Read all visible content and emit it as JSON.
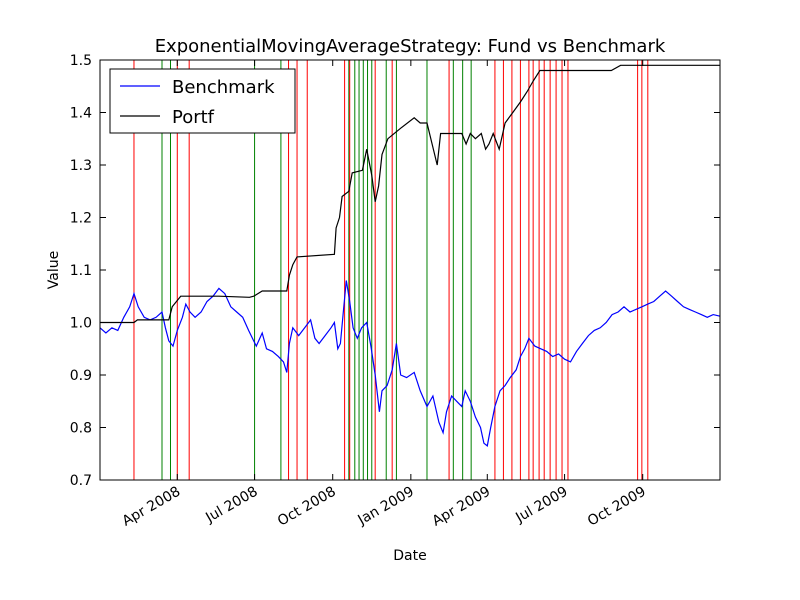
{
  "chart_data": {
    "type": "line",
    "title": "ExponentialMovingAverageStrategy: Fund vs Benchmark",
    "xlabel": "Date",
    "ylabel": "Value",
    "xlim": [
      "2008-01-01",
      "2009-12-31"
    ],
    "ylim": [
      0.7,
      1.5
    ],
    "y_ticks": [
      "0.7",
      "0.8",
      "0.9",
      "1.0",
      "1.1",
      "1.2",
      "1.3",
      "1.4",
      "1.5"
    ],
    "x_ticks": [
      {
        "date": "2008-04-01",
        "label": "Apr 2008"
      },
      {
        "date": "2008-07-01",
        "label": "Jul 2008"
      },
      {
        "date": "2008-10-01",
        "label": "Oct 2008"
      },
      {
        "date": "2009-01-01",
        "label": "Jan 2009"
      },
      {
        "date": "2009-04-01",
        "label": "Apr 2009"
      },
      {
        "date": "2009-07-01",
        "label": "Jul 2009"
      },
      {
        "date": "2009-10-01",
        "label": "Oct 2009"
      }
    ],
    "legend": {
      "position": "top-left"
    },
    "grid": false,
    "series": [
      {
        "name": "Benchmark",
        "color": "#0000ff",
        "points": [
          [
            "2008-01-01",
            0.99
          ],
          [
            "2008-01-08",
            0.98
          ],
          [
            "2008-01-15",
            0.99
          ],
          [
            "2008-01-22",
            0.985
          ],
          [
            "2008-01-29",
            1.01
          ],
          [
            "2008-02-05",
            1.03
          ],
          [
            "2008-02-10",
            1.055
          ],
          [
            "2008-02-15",
            1.03
          ],
          [
            "2008-02-22",
            1.01
          ],
          [
            "2008-02-29",
            1.005
          ],
          [
            "2008-03-07",
            1.01
          ],
          [
            "2008-03-14",
            1.02
          ],
          [
            "2008-03-18",
            0.99
          ],
          [
            "2008-03-22",
            0.965
          ],
          [
            "2008-03-27",
            0.955
          ],
          [
            "2008-04-01",
            0.985
          ],
          [
            "2008-04-07",
            1.01
          ],
          [
            "2008-04-11",
            1.035
          ],
          [
            "2008-04-16",
            1.02
          ],
          [
            "2008-04-22",
            1.01
          ],
          [
            "2008-04-29",
            1.02
          ],
          [
            "2008-05-06",
            1.04
          ],
          [
            "2008-05-13",
            1.05
          ],
          [
            "2008-05-20",
            1.065
          ],
          [
            "2008-05-27",
            1.055
          ],
          [
            "2008-06-03",
            1.03
          ],
          [
            "2008-06-10",
            1.02
          ],
          [
            "2008-06-17",
            1.01
          ],
          [
            "2008-06-24",
            0.985
          ],
          [
            "2008-06-30",
            0.965
          ],
          [
            "2008-07-03",
            0.955
          ],
          [
            "2008-07-10",
            0.98
          ],
          [
            "2008-07-15",
            0.95
          ],
          [
            "2008-07-22",
            0.945
          ],
          [
            "2008-07-29",
            0.935
          ],
          [
            "2008-08-04",
            0.925
          ],
          [
            "2008-08-08",
            0.905
          ],
          [
            "2008-08-11",
            0.96
          ],
          [
            "2008-08-15",
            0.99
          ],
          [
            "2008-08-22",
            0.975
          ],
          [
            "2008-08-29",
            0.99
          ],
          [
            "2008-09-05",
            1.005
          ],
          [
            "2008-09-10",
            0.97
          ],
          [
            "2008-09-15",
            0.96
          ],
          [
            "2008-09-22",
            0.975
          ],
          [
            "2008-09-29",
            0.99
          ],
          [
            "2008-10-03",
            1.0
          ],
          [
            "2008-10-07",
            0.95
          ],
          [
            "2008-10-10",
            0.96
          ],
          [
            "2008-10-14",
            1.03
          ],
          [
            "2008-10-17",
            1.08
          ],
          [
            "2008-10-21",
            1.04
          ],
          [
            "2008-10-25",
            0.99
          ],
          [
            "2008-10-30",
            0.97
          ],
          [
            "2008-11-04",
            0.99
          ],
          [
            "2008-11-10",
            1.0
          ],
          [
            "2008-11-15",
            0.955
          ],
          [
            "2008-11-20",
            0.9
          ],
          [
            "2008-11-25",
            0.83
          ],
          [
            "2008-11-28",
            0.87
          ],
          [
            "2008-12-04",
            0.88
          ],
          [
            "2008-12-10",
            0.91
          ],
          [
            "2008-12-15",
            0.96
          ],
          [
            "2008-12-20",
            0.9
          ],
          [
            "2008-12-27",
            0.895
          ],
          [
            "2009-01-05",
            0.905
          ],
          [
            "2009-01-12",
            0.87
          ],
          [
            "2009-01-20",
            0.84
          ],
          [
            "2009-01-27",
            0.86
          ],
          [
            "2009-02-03",
            0.81
          ],
          [
            "2009-02-08",
            0.79
          ],
          [
            "2009-02-12",
            0.83
          ],
          [
            "2009-02-18",
            0.86
          ],
          [
            "2009-02-24",
            0.85
          ],
          [
            "2009-03-02",
            0.84
          ],
          [
            "2009-03-06",
            0.87
          ],
          [
            "2009-03-12",
            0.85
          ],
          [
            "2009-03-18",
            0.82
          ],
          [
            "2009-03-24",
            0.8
          ],
          [
            "2009-03-28",
            0.77
          ],
          [
            "2009-04-01",
            0.765
          ],
          [
            "2009-04-05",
            0.8
          ],
          [
            "2009-04-10",
            0.84
          ],
          [
            "2009-04-16",
            0.87
          ],
          [
            "2009-04-22",
            0.88
          ],
          [
            "2009-04-28",
            0.895
          ],
          [
            "2009-05-05",
            0.91
          ],
          [
            "2009-05-10",
            0.935
          ],
          [
            "2009-05-15",
            0.95
          ],
          [
            "2009-05-20",
            0.97
          ],
          [
            "2009-05-27",
            0.955
          ],
          [
            "2009-06-03",
            0.95
          ],
          [
            "2009-06-10",
            0.945
          ],
          [
            "2009-06-17",
            0.935
          ],
          [
            "2009-06-24",
            0.94
          ],
          [
            "2009-07-01",
            0.93
          ],
          [
            "2009-07-08",
            0.925
          ],
          [
            "2009-07-15",
            0.945
          ],
          [
            "2009-07-22",
            0.96
          ],
          [
            "2009-07-29",
            0.975
          ],
          [
            "2009-08-05",
            0.985
          ],
          [
            "2009-08-12",
            0.99
          ],
          [
            "2009-08-19",
            1.0
          ],
          [
            "2009-08-26",
            1.015
          ],
          [
            "2009-09-02",
            1.02
          ],
          [
            "2009-09-09",
            1.03
          ],
          [
            "2009-09-16",
            1.02
          ],
          [
            "2009-09-23",
            1.025
          ],
          [
            "2009-09-30",
            1.03
          ],
          [
            "2009-10-07",
            1.035
          ],
          [
            "2009-10-14",
            1.04
          ],
          [
            "2009-10-21",
            1.05
          ],
          [
            "2009-10-28",
            1.06
          ],
          [
            "2009-11-04",
            1.05
          ],
          [
            "2009-11-11",
            1.04
          ],
          [
            "2009-11-18",
            1.03
          ],
          [
            "2009-11-25",
            1.025
          ],
          [
            "2009-12-02",
            1.02
          ],
          [
            "2009-12-09",
            1.015
          ],
          [
            "2009-12-16",
            1.01
          ],
          [
            "2009-12-23",
            1.015
          ],
          [
            "2009-12-31",
            1.012
          ]
        ]
      },
      {
        "name": "Portf",
        "color": "#000000",
        "points": [
          [
            "2008-01-01",
            1.0
          ],
          [
            "2008-02-10",
            1.0
          ],
          [
            "2008-02-14",
            1.005
          ],
          [
            "2008-03-22",
            1.005
          ],
          [
            "2008-03-26",
            1.03
          ],
          [
            "2008-04-05",
            1.05
          ],
          [
            "2008-05-20",
            1.05
          ],
          [
            "2008-06-25",
            1.048
          ],
          [
            "2008-06-30",
            1.05
          ],
          [
            "2008-07-10",
            1.06
          ],
          [
            "2008-08-08",
            1.06
          ],
          [
            "2008-08-11",
            1.09
          ],
          [
            "2008-08-15",
            1.11
          ],
          [
            "2008-08-20",
            1.125
          ],
          [
            "2008-10-03",
            1.13
          ],
          [
            "2008-10-05",
            1.18
          ],
          [
            "2008-10-09",
            1.2
          ],
          [
            "2008-10-12",
            1.24
          ],
          [
            "2008-10-20",
            1.25
          ],
          [
            "2008-10-24",
            1.285
          ],
          [
            "2008-11-05",
            1.29
          ],
          [
            "2008-11-10",
            1.33
          ],
          [
            "2008-11-16",
            1.28
          ],
          [
            "2008-11-20",
            1.23
          ],
          [
            "2008-11-24",
            1.26
          ],
          [
            "2008-11-28",
            1.32
          ],
          [
            "2008-12-05",
            1.35
          ],
          [
            "2008-12-20",
            1.37
          ],
          [
            "2009-01-05",
            1.39
          ],
          [
            "2009-01-12",
            1.38
          ],
          [
            "2009-01-20",
            1.38
          ],
          [
            "2009-01-26",
            1.34
          ],
          [
            "2009-02-01",
            1.3
          ],
          [
            "2009-02-05",
            1.36
          ],
          [
            "2009-03-02",
            1.36
          ],
          [
            "2009-03-07",
            1.34
          ],
          [
            "2009-03-12",
            1.36
          ],
          [
            "2009-03-18",
            1.35
          ],
          [
            "2009-03-25",
            1.36
          ],
          [
            "2009-03-30",
            1.33
          ],
          [
            "2009-04-03",
            1.34
          ],
          [
            "2009-04-08",
            1.36
          ],
          [
            "2009-04-15",
            1.33
          ],
          [
            "2009-04-22",
            1.38
          ],
          [
            "2009-05-01",
            1.4
          ],
          [
            "2009-05-10",
            1.42
          ],
          [
            "2009-05-18",
            1.44
          ],
          [
            "2009-05-25",
            1.46
          ],
          [
            "2009-06-02",
            1.48
          ],
          [
            "2009-08-25",
            1.48
          ],
          [
            "2009-09-05",
            1.49
          ],
          [
            "2009-12-31",
            1.49
          ]
        ]
      }
    ],
    "buy_signals": {
      "color": "#008000",
      "dates": [
        "2008-03-14",
        "2008-03-24",
        "2008-07-01",
        "2008-08-01",
        "2008-10-20",
        "2008-10-27",
        "2008-11-01",
        "2008-11-06",
        "2008-11-11",
        "2008-11-16",
        "2008-12-03",
        "2008-12-15",
        "2009-01-20",
        "2009-02-20",
        "2009-03-03",
        "2009-03-13"
      ]
    },
    "sell_signals": {
      "color": "#ff0000",
      "dates": [
        "2008-02-10",
        "2008-04-01",
        "2008-04-15",
        "2008-08-10",
        "2008-08-20",
        "2008-09-01",
        "2008-10-15",
        "2008-10-21",
        "2008-11-20",
        "2008-12-10",
        "2009-02-15",
        "2009-04-10",
        "2009-04-20",
        "2009-04-30",
        "2009-05-10",
        "2009-05-20",
        "2009-05-25",
        "2009-06-01",
        "2009-06-07",
        "2009-06-14",
        "2009-06-21",
        "2009-06-28",
        "2009-07-05",
        "2009-09-25",
        "2009-09-30",
        "2009-10-07"
      ]
    }
  }
}
